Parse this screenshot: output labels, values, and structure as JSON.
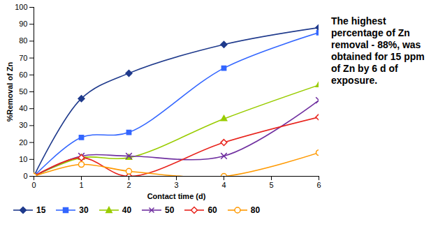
{
  "chart_data": {
    "type": "line",
    "xlabel": "Contact time (d)",
    "ylabel": "%Removal of Zn",
    "annotation": "The highest percentage of Zn removal - 88%, was obtained for 15 ppm of Zn by 6 d of exposure.",
    "x": [
      0,
      1,
      2,
      4,
      6
    ],
    "xlim": [
      0,
      6
    ],
    "xticks": [
      0,
      1,
      2,
      3,
      4,
      5,
      6
    ],
    "ylim": [
      0,
      100
    ],
    "yticks": [
      0,
      10,
      20,
      30,
      40,
      50,
      60,
      70,
      80,
      90,
      100
    ],
    "grid": false,
    "legend": "bottom",
    "series": [
      {
        "name": "15",
        "color": "#1f3a8c",
        "marker": "diamond",
        "values": [
          0,
          46,
          61,
          78,
          88
        ]
      },
      {
        "name": "30",
        "color": "#3366ff",
        "marker": "square",
        "values": [
          0,
          23,
          26,
          64,
          85
        ]
      },
      {
        "name": "40",
        "color": "#99cc00",
        "marker": "triangle",
        "values": [
          0,
          11,
          11,
          34,
          54
        ]
      },
      {
        "name": "50",
        "color": "#7030a0",
        "marker": "times",
        "values": [
          0,
          12,
          12,
          12,
          45
        ]
      },
      {
        "name": "60",
        "color": "#e8231c",
        "marker": "diamond-open",
        "values": [
          0,
          11,
          0,
          20,
          35
        ]
      },
      {
        "name": "80",
        "color": "#ff9900",
        "marker": "circle-open",
        "values": [
          0,
          7,
          3,
          0,
          14
        ]
      }
    ]
  }
}
